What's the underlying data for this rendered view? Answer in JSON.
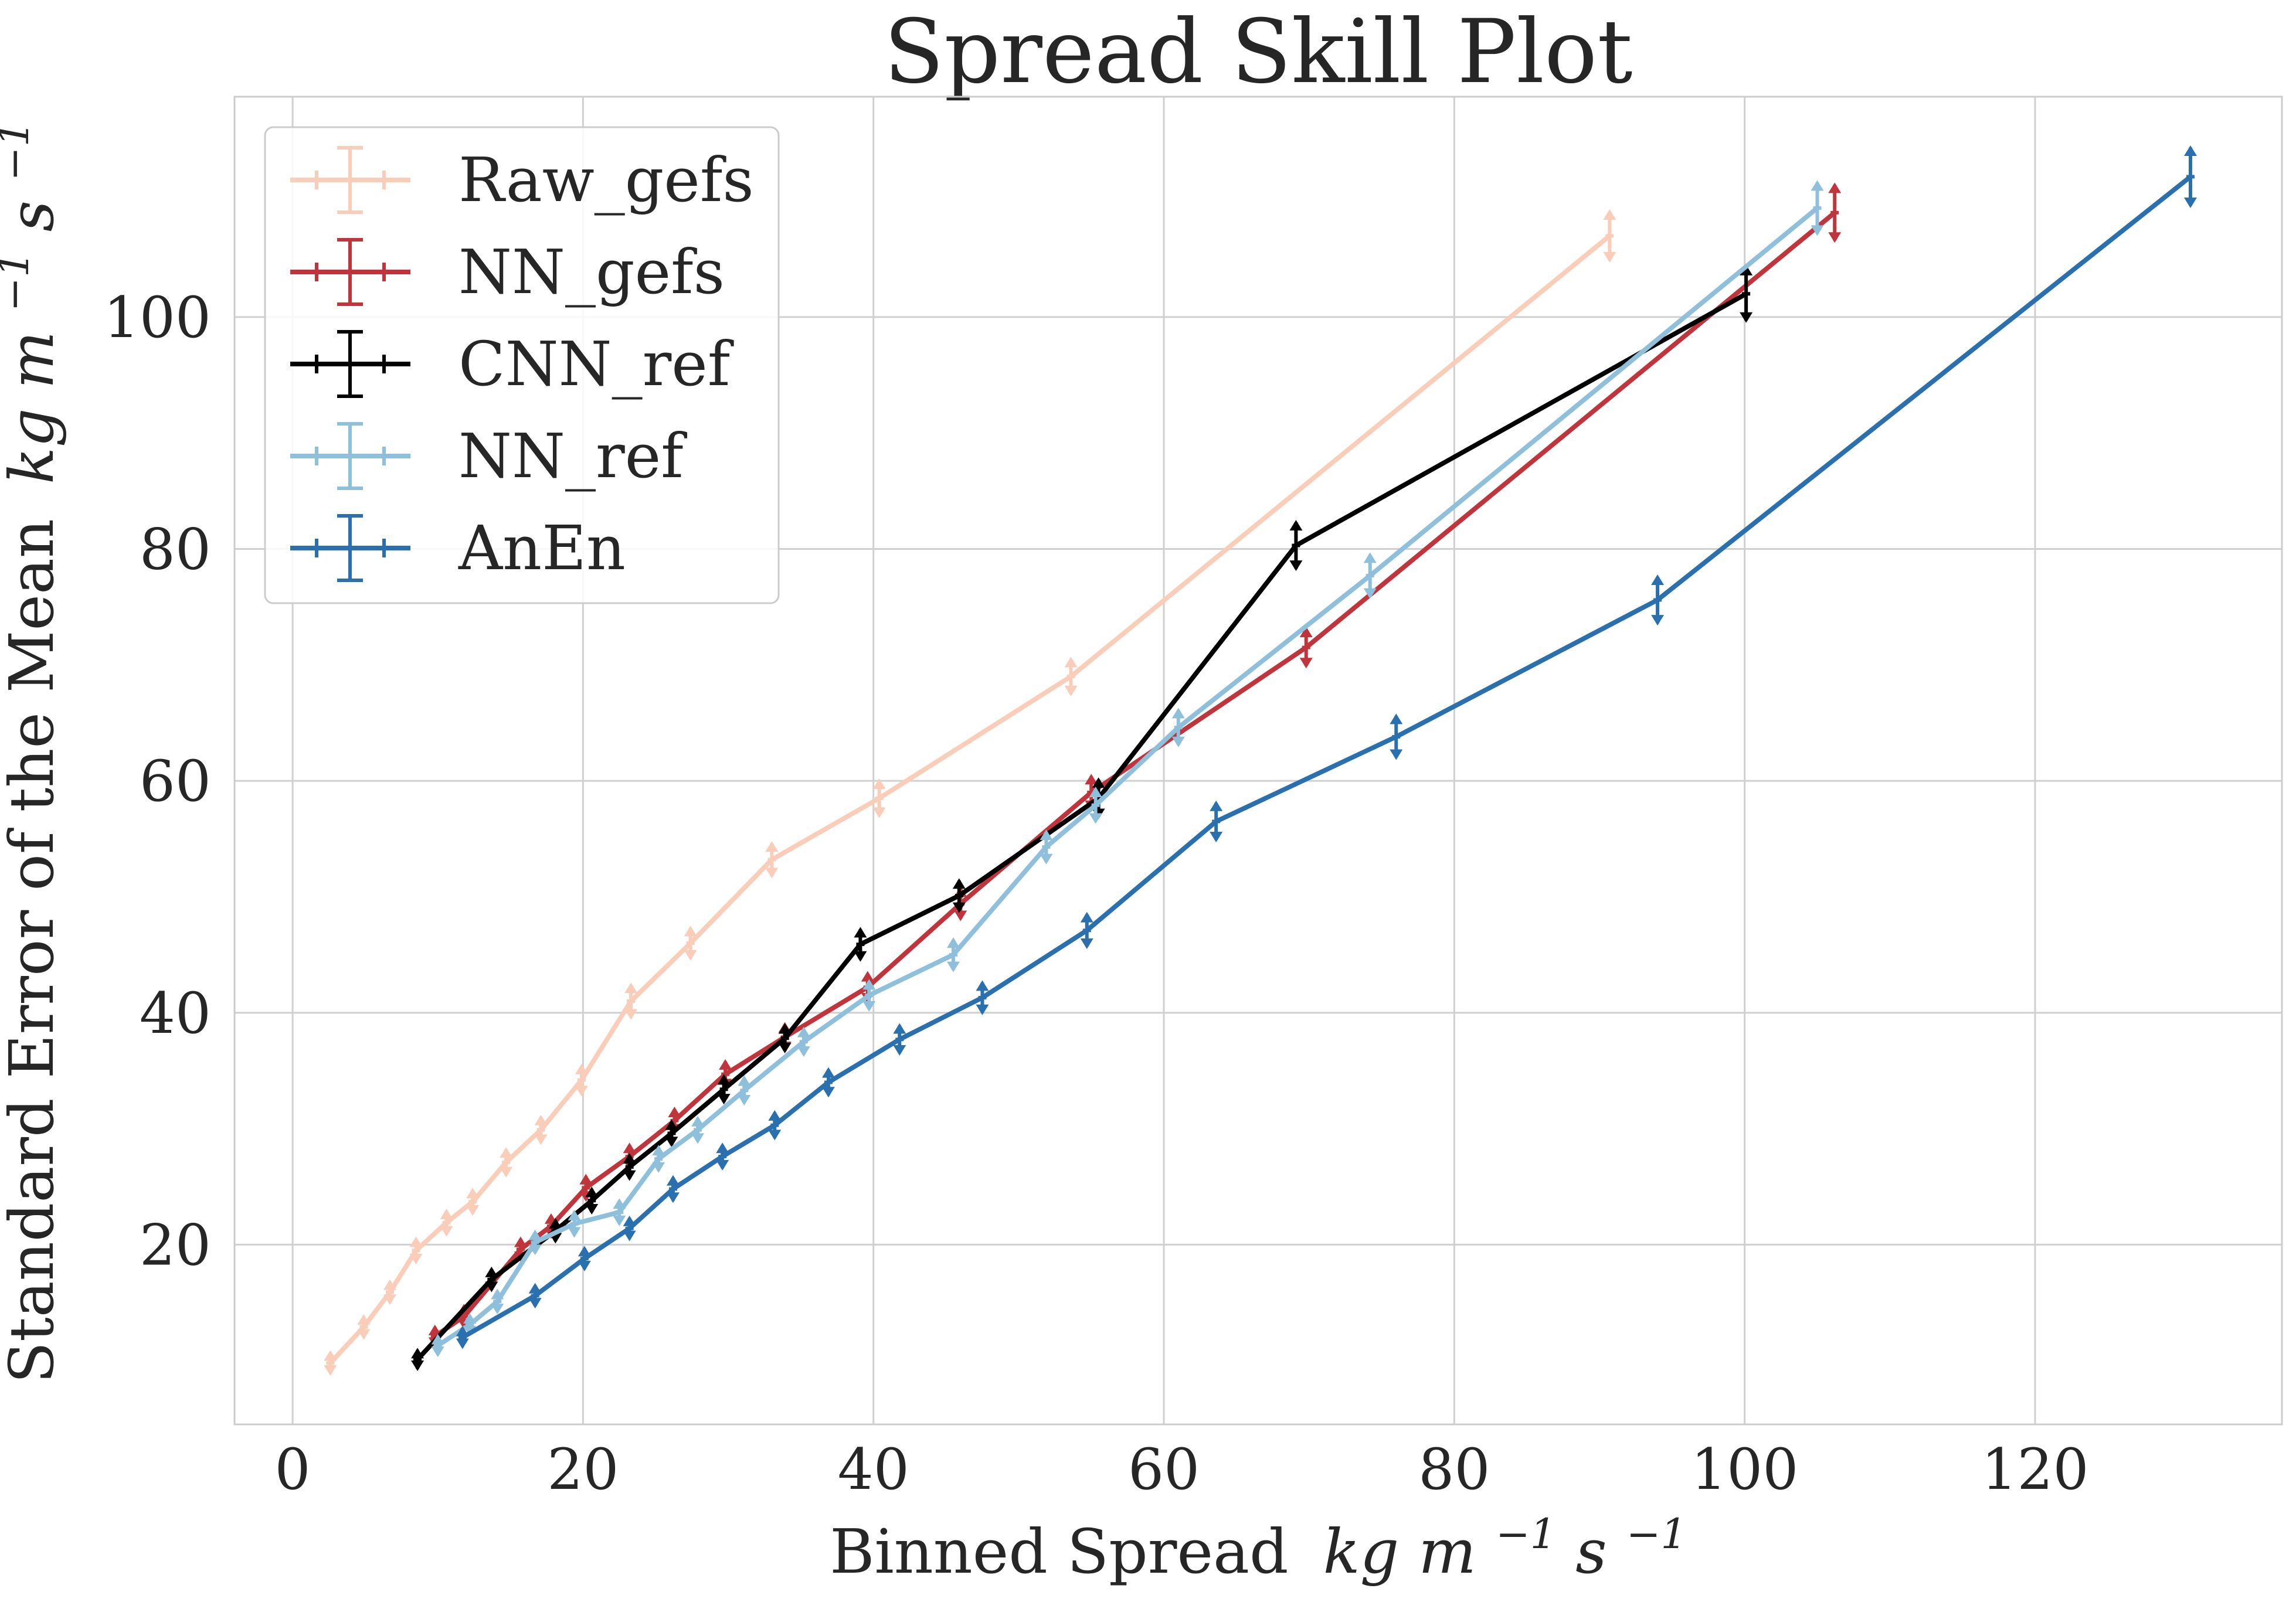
{
  "chart_data": {
    "type": "line",
    "title": "Spread Skill Plot",
    "xlabel_text": "Binned Spread",
    "ylabel_text": "Standard Error of the Mean",
    "units": {
      "base": "kg m",
      "exp1": "−1",
      "s": " s",
      "exp2": "−1"
    },
    "xlim": [
      -4,
      137
    ],
    "ylim": [
      4.5,
      119
    ],
    "xticks": [
      0,
      20,
      40,
      60,
      80,
      100,
      120
    ],
    "yticks": [
      20,
      40,
      60,
      80,
      100
    ],
    "grid": true,
    "legend_position": "upper left",
    "series": [
      {
        "name": "Raw_gefs",
        "color": "#f9cdb7",
        "x": [
          2.6,
          4.9,
          6.7,
          8.5,
          10.6,
          12.4,
          14.7,
          17.1,
          19.9,
          23.3,
          27.4,
          33.0,
          40.4,
          53.6,
          90.7
        ],
        "y": [
          9.8,
          12.9,
          15.9,
          19.5,
          21.9,
          23.7,
          27.1,
          29.9,
          34.2,
          41.0,
          46.0,
          53.2,
          58.5,
          69.0,
          107.0
        ],
        "err": [
          0.9,
          0.9,
          0.9,
          1.0,
          1.0,
          1.0,
          1.1,
          1.1,
          1.2,
          1.4,
          1.3,
          1.4,
          1.5,
          1.5,
          2.1
        ]
      },
      {
        "name": "NN_gefs",
        "color": "#c0343c",
        "x": [
          9.8,
          11.8,
          15.7,
          17.8,
          20.2,
          23.2,
          26.3,
          29.8,
          33.9,
          39.6,
          46.0,
          55.0,
          69.8,
          106.2
        ],
        "y": [
          12.1,
          13.8,
          19.6,
          21.6,
          24.9,
          27.6,
          30.7,
          34.7,
          37.9,
          42.2,
          49.4,
          59.0,
          71.5,
          109.0
        ],
        "err": [
          0.8,
          0.9,
          0.9,
          0.9,
          1.0,
          1.0,
          1.0,
          1.1,
          1.1,
          1.2,
          1.3,
          1.4,
          1.6,
          2.4
        ]
      },
      {
        "name": "CNN_ref",
        "color": "#000000",
        "x": [
          8.6,
          13.7,
          18.1,
          20.6,
          23.2,
          26.1,
          29.7,
          33.9,
          39.1,
          45.9,
          55.5,
          69.1,
          100.1
        ],
        "y": [
          10.1,
          17.0,
          21.2,
          23.8,
          26.7,
          29.6,
          33.4,
          37.8,
          45.9,
          50.1,
          58.5,
          80.3,
          102.0
        ],
        "err": [
          0.8,
          0.9,
          0.9,
          1.0,
          1.0,
          1.0,
          1.1,
          1.1,
          1.3,
          1.3,
          1.6,
          2.0,
          2.3
        ]
      },
      {
        "name": "NN_ref",
        "color": "#8ebfdb",
        "x": [
          10.0,
          12.2,
          14.1,
          16.7,
          19.4,
          22.5,
          25.2,
          27.9,
          31.1,
          35.2,
          39.7,
          45.5,
          51.9,
          55.3,
          61.0,
          74.2,
          105.0
        ],
        "y": [
          11.3,
          13.1,
          15.1,
          20.2,
          21.8,
          22.8,
          27.4,
          29.9,
          33.3,
          37.5,
          41.5,
          45.0,
          54.3,
          57.9,
          64.6,
          77.7,
          109.4
        ],
        "err": [
          0.8,
          0.8,
          0.9,
          0.9,
          1.0,
          1.0,
          1.0,
          1.0,
          1.1,
          1.1,
          1.2,
          1.3,
          1.3,
          1.4,
          1.5,
          1.8,
          2.2
        ]
      },
      {
        "name": "AnEn",
        "color": "#2a6fae",
        "x": [
          11.7,
          16.7,
          20.1,
          23.2,
          26.2,
          29.6,
          33.2,
          36.9,
          41.8,
          47.5,
          54.7,
          63.6,
          76.0,
          94.0,
          130.7
        ],
        "y": [
          12.0,
          15.6,
          18.8,
          21.4,
          24.8,
          27.6,
          30.3,
          34.0,
          37.7,
          41.3,
          47.1,
          56.5,
          63.8,
          75.6,
          112.1
        ],
        "err": [
          0.8,
          0.9,
          0.9,
          0.9,
          1.0,
          1.0,
          1.1,
          1.1,
          1.2,
          1.3,
          1.4,
          1.6,
          1.8,
          2.0,
          2.5
        ]
      }
    ]
  }
}
